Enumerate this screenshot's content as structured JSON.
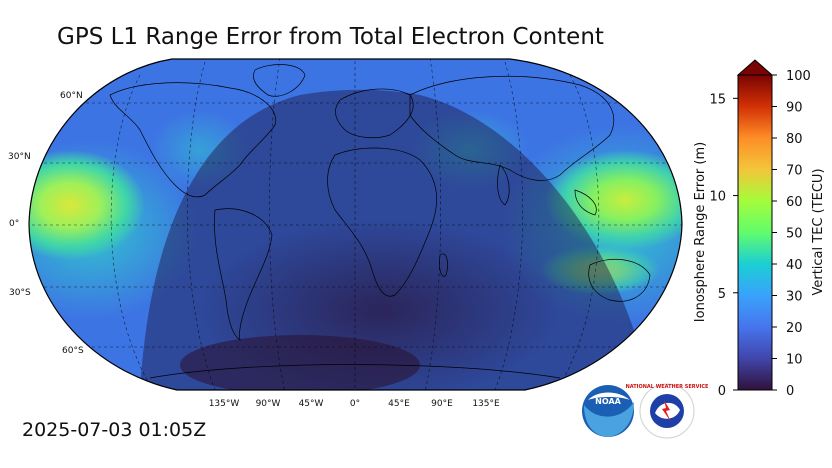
{
  "title": "GPS L1 Range Error from Total Electron Content",
  "timestamp": "2025-07-03 01:05Z",
  "map": {
    "lat_labels": [
      "60°N",
      "30°N",
      "0°",
      "30°S",
      "60°S"
    ],
    "lon_labels": [
      "135°W",
      "90°W",
      "45°W",
      "0°",
      "45°E",
      "90°E",
      "135°E"
    ]
  },
  "colorbar": {
    "left_label": "Ionosphere Range Error (m)",
    "left_ticks": [
      "0",
      "5",
      "10",
      "15"
    ],
    "right_label": "Vertical TEC (TECU)",
    "right_ticks": [
      "0",
      "10",
      "20",
      "30",
      "40",
      "50",
      "60",
      "70",
      "80",
      "90",
      "100"
    ],
    "range_tecu": [
      0,
      100
    ],
    "range_m": [
      0,
      16.2
    ]
  },
  "logos": {
    "noaa": "NOAA",
    "nws": "NATIONAL WEATHER SERVICE"
  }
}
